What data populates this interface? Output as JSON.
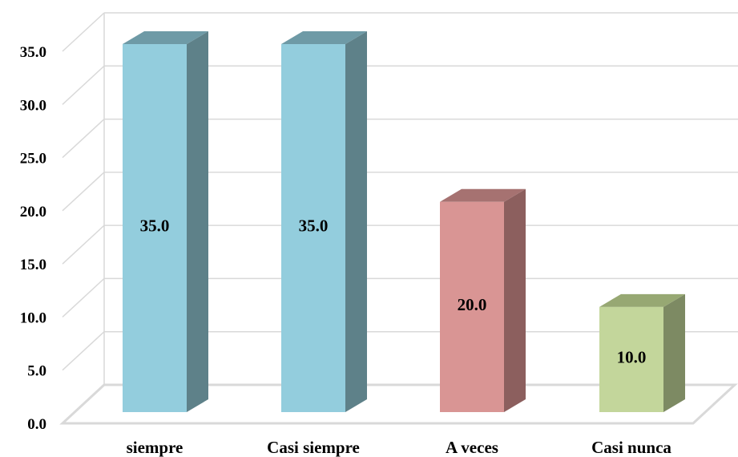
{
  "chart_data": {
    "type": "bar",
    "style": "3d-column",
    "categories": [
      "siempre",
      "Casi siempre",
      "A veces",
      "Casi nunca"
    ],
    "values": [
      35.0,
      35.0,
      20.0,
      10.0
    ],
    "data_labels": [
      "35.0",
      "35.0",
      "20.0",
      "10.0"
    ],
    "colors": [
      {
        "front": "#93CDDD",
        "side": "#5E8189",
        "top": "#6E9AA6"
      },
      {
        "front": "#93CDDD",
        "side": "#5E8189",
        "top": "#6E9AA6"
      },
      {
        "front": "#D99594",
        "side": "#8C5F5E",
        "top": "#A67271"
      },
      {
        "front": "#C3D69B",
        "side": "#7D8A63",
        "top": "#97A873"
      }
    ],
    "ylim": [
      0,
      35
    ],
    "yticks": [
      "0.0",
      "5.0",
      "10.0",
      "15.0",
      "20.0",
      "25.0",
      "30.0",
      "35.0"
    ],
    "grid": true,
    "legend": "none",
    "title": "",
    "xlabel": "",
    "ylabel": ""
  }
}
